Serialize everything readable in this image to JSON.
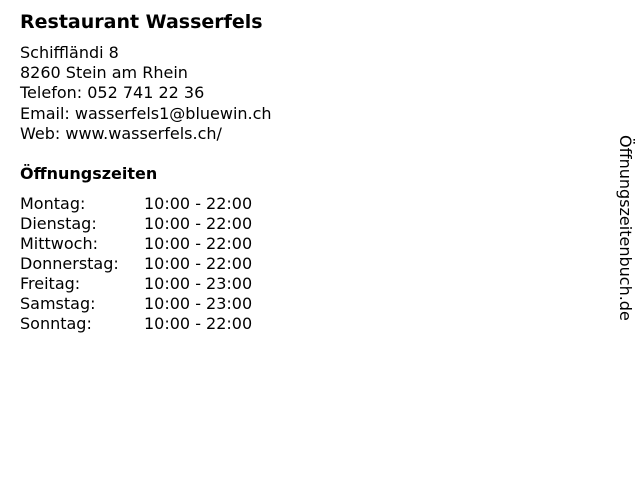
{
  "name": "Restaurant Wasserfels",
  "address": {
    "street": "Schiffländi 8",
    "city": "8260 Stein am Rhein",
    "phone": "Telefon: 052 741 22 36",
    "email": "Email: wasserfels1@bluewin.ch",
    "web": "Web: www.wasserfels.ch/"
  },
  "hours_heading": "Öffnungszeiten",
  "hours": [
    {
      "day": "Montag:",
      "time": "10:00 - 22:00"
    },
    {
      "day": "Dienstag:",
      "time": "10:00 - 22:00"
    },
    {
      "day": "Mittwoch:",
      "time": "10:00 - 22:00"
    },
    {
      "day": "Donnerstag:",
      "time": "10:00 - 22:00"
    },
    {
      "day": "Freitag:",
      "time": "10:00 - 23:00"
    },
    {
      "day": "Samstag:",
      "time": "10:00 - 23:00"
    },
    {
      "day": "Sonntag:",
      "time": "10:00 - 22:00"
    }
  ],
  "watermark": "Öffnungszeitenbuch.de"
}
